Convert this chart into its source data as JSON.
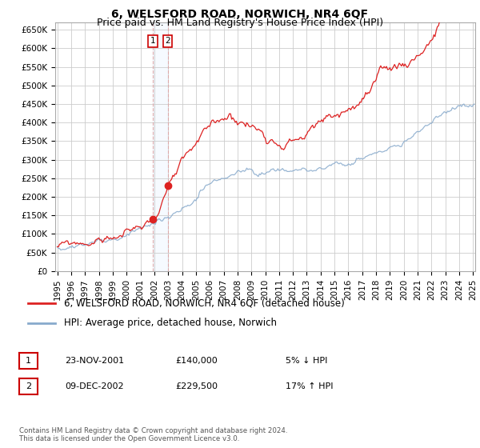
{
  "title": "6, WELSFORD ROAD, NORWICH, NR4 6QF",
  "subtitle": "Price paid vs. HM Land Registry's House Price Index (HPI)",
  "ylabel_ticks": [
    "£0",
    "£50K",
    "£100K",
    "£150K",
    "£200K",
    "£250K",
    "£300K",
    "£350K",
    "£400K",
    "£450K",
    "£500K",
    "£550K",
    "£600K",
    "£650K"
  ],
  "ytick_values": [
    0,
    50000,
    100000,
    150000,
    200000,
    250000,
    300000,
    350000,
    400000,
    450000,
    500000,
    550000,
    600000,
    650000
  ],
  "ylim": [
    0,
    670000
  ],
  "sale1_year": 2001.9,
  "sale1_price": 140000,
  "sale2_year": 2002.96,
  "sale2_price": 229500,
  "red_line_color": "#dd2222",
  "blue_line_color": "#88aacc",
  "vline_color": "#ddaaaa",
  "shade_color": "#ddeeff",
  "grid_color": "#cccccc",
  "background_color": "#ffffff",
  "legend_label_red": "6, WELSFORD ROAD, NORWICH, NR4 6QF (detached house)",
  "legend_label_blue": "HPI: Average price, detached house, Norwich",
  "table_rows": [
    {
      "num": "1",
      "date": "23-NOV-2001",
      "price": "£140,000",
      "hpi": "5% ↓ HPI"
    },
    {
      "num": "2",
      "date": "09-DEC-2002",
      "price": "£229,500",
      "hpi": "17% ↑ HPI"
    }
  ],
  "footnote": "Contains HM Land Registry data © Crown copyright and database right 2024.\nThis data is licensed under the Open Government Licence v3.0.",
  "title_fontsize": 10,
  "subtitle_fontsize": 9,
  "tick_fontsize": 7.5,
  "legend_fontsize": 8.5
}
